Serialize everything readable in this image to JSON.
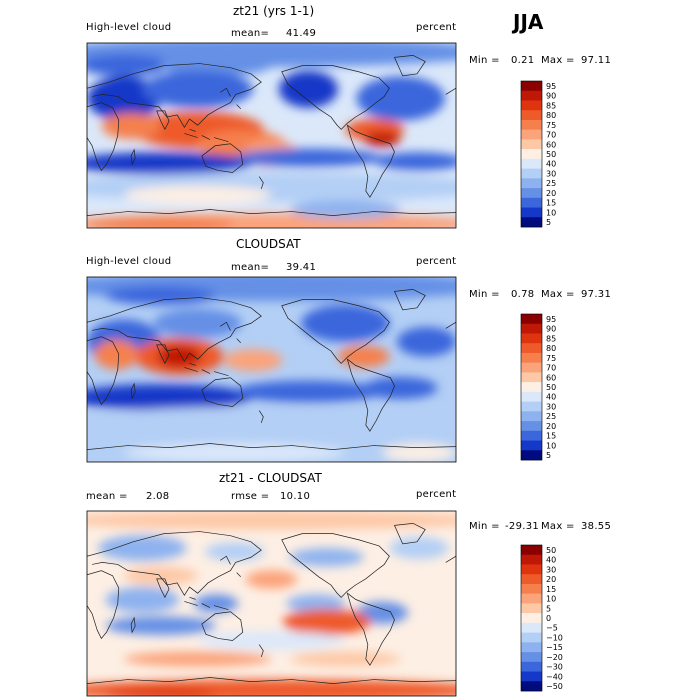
{
  "season": "JJA",
  "panels": [
    {
      "title": "zt21 (yrs 1-1)",
      "left_label": "High-level cloud",
      "mean_label": "mean=",
      "mean_value": "41.49",
      "units": "percent",
      "min_label": "Min =",
      "min_value": "0.21",
      "max_label": "Max =",
      "max_value": "97.11"
    },
    {
      "title": "CLOUDSAT",
      "left_label": "High-level cloud",
      "mean_label": "mean=",
      "mean_value": "39.41",
      "units": "percent",
      "min_label": "Min =",
      "min_value": "0.78",
      "max_label": "Max =",
      "max_value": "97.31"
    },
    {
      "title": "zt21 - CLOUDSAT",
      "mean_label": "mean =",
      "mean_value": "2.08",
      "rmse_label": "rmse =",
      "rmse_value": "10.10",
      "units": "percent",
      "min_label": "Min =",
      "min_value": "-29.31",
      "max_label": "Max =",
      "max_value": "38.55"
    }
  ],
  "chart_data": [
    {
      "type": "heatmap",
      "title": "zt21 (yrs 1-1)",
      "variable": "High-level cloud",
      "units": "percent",
      "mean": 41.49,
      "min": 0.21,
      "max": 97.11,
      "colorbar_ticks": [
        "95",
        "90",
        "85",
        "80",
        "75",
        "70",
        "60",
        "50",
        "40",
        "30",
        "25",
        "20",
        "15",
        "10",
        "5"
      ],
      "colorbar_colors": [
        "#8a0000",
        "#c01806",
        "#de3410",
        "#ee5a2a",
        "#f5804e",
        "#fba37a",
        "#fdc8a6",
        "#fdefe4",
        "#dbe8fa",
        "#b3cff5",
        "#8eb2ef",
        "#6590e6",
        "#3b66dc",
        "#1438c8",
        "#000b80"
      ]
    },
    {
      "type": "heatmap",
      "title": "CLOUDSAT",
      "variable": "High-level cloud",
      "units": "percent",
      "mean": 39.41,
      "min": 0.78,
      "max": 97.31,
      "colorbar_ticks": [
        "95",
        "90",
        "85",
        "80",
        "75",
        "70",
        "60",
        "50",
        "40",
        "30",
        "25",
        "20",
        "15",
        "10",
        "5"
      ],
      "colorbar_colors": [
        "#8a0000",
        "#c01806",
        "#de3410",
        "#ee5a2a",
        "#f5804e",
        "#fba37a",
        "#fdc8a6",
        "#fdefe4",
        "#dbe8fa",
        "#b3cff5",
        "#8eb2ef",
        "#6590e6",
        "#3b66dc",
        "#1438c8",
        "#000b80"
      ]
    },
    {
      "type": "heatmap",
      "title": "zt21 - CLOUDSAT",
      "units": "percent",
      "mean": 2.08,
      "rmse": 10.1,
      "min": -29.31,
      "max": 38.55,
      "colorbar_ticks": [
        "50",
        "40",
        "30",
        "20",
        "15",
        "10",
        "5",
        "0",
        "−5",
        "−10",
        "−15",
        "−20",
        "−30",
        "−40",
        "−50"
      ],
      "colorbar_colors": [
        "#8a0000",
        "#c01806",
        "#de3410",
        "#ee5a2a",
        "#f5804e",
        "#fba37a",
        "#fdc8a6",
        "#fdefe4",
        "#dbe8fa",
        "#b3cff5",
        "#8eb2ef",
        "#6590e6",
        "#3b66dc",
        "#1438c8",
        "#000b80"
      ]
    }
  ]
}
